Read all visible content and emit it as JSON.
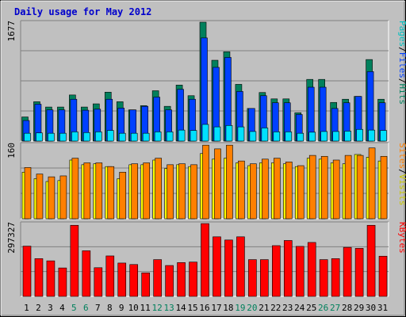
{
  "chart_data": {
    "type": "bar",
    "title": "Daily usage for May 2012",
    "categories": [
      "1",
      "2",
      "3",
      "4",
      "5",
      "6",
      "7",
      "8",
      "9",
      "10",
      "11",
      "12",
      "13",
      "14",
      "15",
      "16",
      "17",
      "18",
      "19",
      "20",
      "21",
      "22",
      "23",
      "24",
      "25",
      "26",
      "27",
      "28",
      "29",
      "30",
      "31"
    ],
    "weekend_days": [
      "5",
      "6",
      "12",
      "13",
      "19",
      "20",
      "26",
      "27"
    ],
    "colors": {
      "title": "#0000cc",
      "weekday_label": "#000000",
      "weekend_label": "#00805c",
      "panel_bg": "#c0c0c0",
      "hits": "#00805c",
      "files": "#0040ff",
      "pages": "#00e0ff",
      "visits": "#ffff00",
      "sites": "#ff8000",
      "kbytes": "#ff0000"
    },
    "panels": [
      {
        "id": "top",
        "max_label": "1677",
        "ymax": 1677,
        "legend": [
          {
            "text": "Pages",
            "color": "#00c0c0"
          },
          {
            "text": "/",
            "color": "#000000"
          },
          {
            "text": "Files",
            "color": "#0040ff"
          },
          {
            "text": "/",
            "color": "#000000"
          },
          {
            "text": "Hits",
            "color": "#00805c"
          }
        ],
        "series": [
          {
            "name": "Hits",
            "color": "#00805c",
            "values": [
              340,
              555,
              480,
              480,
              650,
              480,
              525,
              690,
              555,
              440,
              500,
              710,
              490,
              790,
              640,
              1677,
              1140,
              1260,
              800,
              460,
              685,
              595,
              595,
              400,
              870,
              870,
              545,
              590,
              630,
              1150,
              590
            ]
          },
          {
            "name": "Files",
            "color": "#0040ff",
            "values": [
              290,
              520,
              440,
              440,
              590,
              435,
              450,
              590,
              465,
              440,
              490,
              620,
              440,
              730,
              590,
              1455,
              1040,
              1180,
              700,
              460,
              640,
              540,
              540,
              375,
              760,
              760,
              460,
              540,
              630,
              980,
              540
            ]
          },
          {
            "name": "Pages",
            "color": "#00e0ff",
            "values": [
              110,
              115,
              110,
              110,
              130,
              120,
              130,
              150,
              110,
              110,
              110,
              130,
              130,
              155,
              150,
              235,
              200,
              220,
              200,
              135,
              185,
              130,
              130,
              110,
              125,
              135,
              135,
              140,
              165,
              155,
              150
            ]
          }
        ]
      },
      {
        "id": "mid",
        "max_label": "160",
        "ymax": 160,
        "legend": [
          {
            "text": "Sites",
            "color": "#ff8000"
          },
          {
            "text": "/",
            "color": "#000000"
          },
          {
            "text": "Visits",
            "color": "#c8c800"
          }
        ],
        "series": [
          {
            "name": "Visits",
            "color": "#ffff00",
            "values": [
              100,
              86,
              80,
              82,
              126,
              116,
              118,
              112,
              86,
              116,
              116,
              126,
              108,
              116,
              112,
              140,
              128,
              130,
              120,
              114,
              120,
              120,
              118,
              112,
              130,
              128,
              120,
              118,
              138,
              132,
              124
            ]
          },
          {
            "name": "Sites",
            "color": "#ff8000",
            "values": [
              110,
              96,
              90,
              92,
              130,
              120,
              120,
              112,
              100,
              118,
              120,
              130,
              116,
              118,
              116,
              158,
              150,
              158,
              124,
              118,
              128,
              130,
              122,
              114,
              136,
              134,
              126,
              136,
              136,
              152,
              134
            ]
          }
        ]
      },
      {
        "id": "bot",
        "max_label": "297327",
        "ymax": 297327,
        "legend": [
          {
            "text": "KBytes",
            "color": "#ff0000"
          }
        ],
        "series": [
          {
            "name": "KBytes",
            "color": "#ff0000",
            "values": [
              205000,
              154000,
              145000,
              116000,
              290000,
              186000,
              117000,
              165000,
              136000,
              130000,
              96000,
              150000,
              126000,
              138000,
              140000,
              297000,
              243000,
              230000,
              243000,
              150000,
              150000,
              207000,
              228000,
              204000,
              220000,
              150000,
              154000,
              200000,
              196000,
              290000,
              164000
            ]
          }
        ]
      }
    ]
  }
}
